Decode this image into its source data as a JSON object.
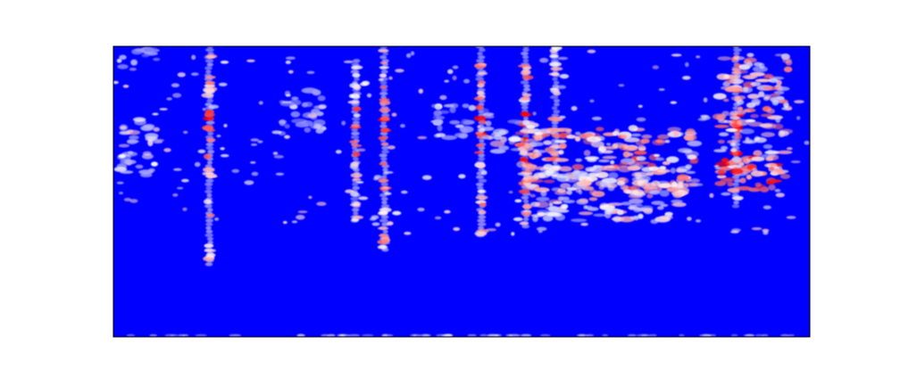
{
  "chart_data": {
    "type": "heatmap",
    "title": "",
    "xlabel": "",
    "ylabel": "",
    "axes_visible": false,
    "grid": false,
    "legend": "none",
    "colormap": {
      "low": "#0000ff",
      "mid": "#ffffff",
      "high": "#ff0000"
    },
    "x_range": [
      0,
      1
    ],
    "y_range": [
      0,
      1
    ],
    "features": [
      {
        "kind": "vertical-streak",
        "x": 0.138,
        "y": [
          0.25,
          1.0
        ],
        "intensity": 0.65
      },
      {
        "kind": "vertical-streak",
        "x": 0.348,
        "y": [
          0.4,
          0.95
        ],
        "intensity": 0.55
      },
      {
        "kind": "vertical-streak",
        "x": 0.389,
        "y": [
          0.3,
          1.0
        ],
        "intensity": 0.7
      },
      {
        "kind": "vertical-streak",
        "x": 0.528,
        "y": [
          0.35,
          1.0
        ],
        "intensity": 0.7
      },
      {
        "kind": "vertical-streak",
        "x": 0.592,
        "y": [
          0.38,
          1.0
        ],
        "intensity": 0.72
      },
      {
        "kind": "vertical-streak",
        "x": 0.635,
        "y": [
          0.55,
          1.0
        ],
        "intensity": 0.55
      },
      {
        "kind": "vertical-streak",
        "x": 0.895,
        "y": [
          0.45,
          1.0
        ],
        "intensity": 0.7
      },
      {
        "kind": "cluster",
        "x": [
          0.01,
          0.06
        ],
        "y": [
          0.55,
          0.75
        ],
        "intensity": 0.55
      },
      {
        "kind": "cluster",
        "x": [
          0.01,
          0.07
        ],
        "y": [
          0.93,
          0.99
        ],
        "intensity": 0.35
      },
      {
        "kind": "cluster",
        "x": [
          0.58,
          0.84
        ],
        "y": [
          0.5,
          0.72
        ],
        "intensity": 0.75
      },
      {
        "kind": "cluster",
        "x": [
          0.6,
          0.82
        ],
        "y": [
          0.4,
          0.58
        ],
        "intensity": 0.6
      },
      {
        "kind": "cluster",
        "x": [
          0.87,
          0.97
        ],
        "y": [
          0.55,
          0.97
        ],
        "intensity": 0.7
      },
      {
        "kind": "cluster",
        "x": [
          0.87,
          0.96
        ],
        "y": [
          0.5,
          0.62
        ],
        "intensity": 0.9
      },
      {
        "kind": "cluster",
        "x": [
          0.55,
          0.62
        ],
        "y": [
          0.62,
          0.75
        ],
        "intensity": 0.6
      },
      {
        "kind": "cluster",
        "x": [
          0.24,
          0.3
        ],
        "y": [
          0.7,
          0.85
        ],
        "intensity": 0.4
      },
      {
        "kind": "cluster",
        "x": [
          0.46,
          0.54
        ],
        "y": [
          0.68,
          0.8
        ],
        "intensity": 0.45
      },
      {
        "kind": "baseline-dots",
        "y": 0.005,
        "intensity": 0.25
      }
    ]
  }
}
